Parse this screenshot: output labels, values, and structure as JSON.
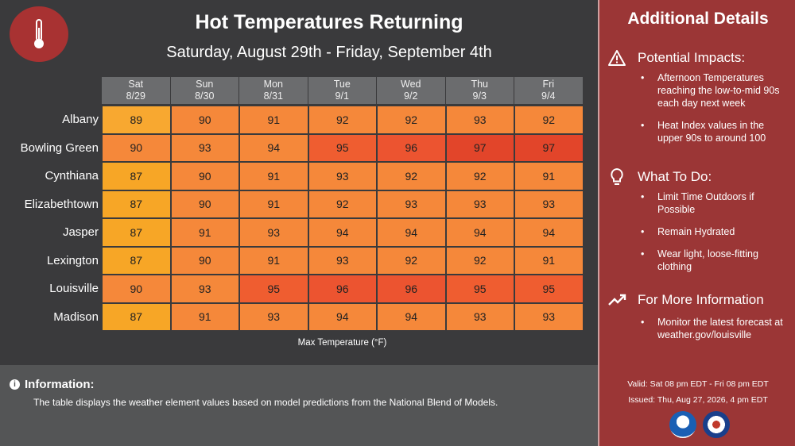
{
  "header": {
    "title": "Hot Temperatures Returning",
    "subtitle": "Saturday, August 29th - Friday, September 4th",
    "logo_icon": "thermometer-icon"
  },
  "chart_data": {
    "type": "table",
    "title": "Hot Temperatures Returning",
    "subtitle": "Saturday, August 29th - Friday, September 4th",
    "caption": "Max Temperature (°F)",
    "columns": [
      {
        "day": "Sat",
        "date": "8/29"
      },
      {
        "day": "Sun",
        "date": "8/30"
      },
      {
        "day": "Mon",
        "date": "8/31"
      },
      {
        "day": "Tue",
        "date": "9/1"
      },
      {
        "day": "Wed",
        "date": "9/2"
      },
      {
        "day": "Thu",
        "date": "9/3"
      },
      {
        "day": "Fri",
        "date": "9/4"
      }
    ],
    "rows": [
      {
        "city": "Albany",
        "values": [
          89,
          90,
          91,
          92,
          92,
          93,
          92
        ]
      },
      {
        "city": "Bowling Green",
        "values": [
          90,
          93,
          94,
          95,
          96,
          97,
          97
        ]
      },
      {
        "city": "Cynthiana",
        "values": [
          87,
          90,
          91,
          93,
          92,
          92,
          91
        ]
      },
      {
        "city": "Elizabethtown",
        "values": [
          87,
          90,
          91,
          92,
          93,
          93,
          93
        ]
      },
      {
        "city": "Jasper",
        "values": [
          87,
          91,
          93,
          94,
          94,
          94,
          94
        ]
      },
      {
        "city": "Lexington",
        "values": [
          87,
          90,
          91,
          93,
          92,
          92,
          91
        ]
      },
      {
        "city": "Louisville",
        "values": [
          90,
          93,
          95,
          96,
          96,
          95,
          95
        ]
      },
      {
        "city": "Madison",
        "values": [
          87,
          91,
          93,
          94,
          94,
          93,
          93
        ]
      }
    ],
    "color_scale": {
      "87": "#f5a623",
      "89": "#f7a832",
      "90": "#f58a3a",
      "95": "#ee5a30",
      "97": "#e0432a"
    }
  },
  "info": {
    "title": "Information:",
    "text": "The table displays the weather element values based on model predictions from the National Blend of Models."
  },
  "sidebar": {
    "title": "Additional Details",
    "sections": [
      {
        "heading": "Potential Impacts:",
        "icon": "warning-icon",
        "bullets": [
          "Afternoon Temperatures reaching the low-to-mid 90s each day next week",
          "Heat Index values in the upper 90s to around 100"
        ]
      },
      {
        "heading": "What To Do:",
        "icon": "lightbulb-icon",
        "bullets": [
          "Limit Time Outdoors if Possible",
          "Remain Hydrated",
          "Wear light, loose-fitting clothing"
        ]
      },
      {
        "heading": "For More Information",
        "icon": "trend-icon",
        "bullets": [
          "Monitor the latest forecast at weather.gov/louisville"
        ]
      }
    ],
    "valid": "Valid: Sat 08 pm EDT - Fri 08 pm EDT",
    "issued": "Issued: Thu, Aug 27, 2026, 4 pm EDT",
    "seals": [
      "noaa-logo",
      "nws-logo"
    ]
  },
  "colors": {
    "accent": "#9b3636",
    "panel": "#3a3a3c",
    "header_cell": "#6b6c6e"
  }
}
